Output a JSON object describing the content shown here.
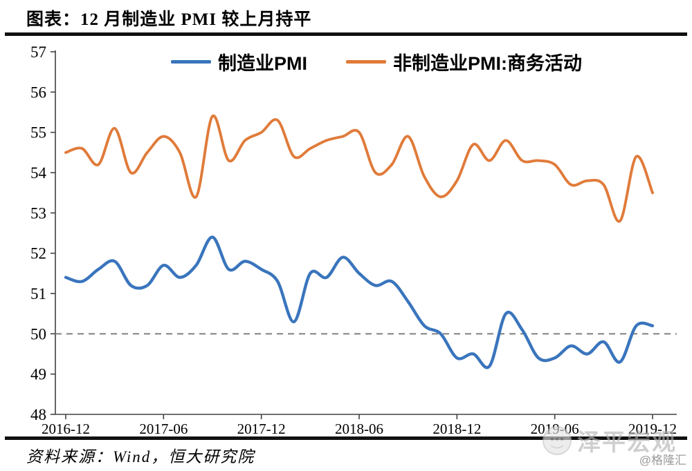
{
  "header": {
    "title": "图表：12 月制造业 PMI 较上月持平"
  },
  "source": {
    "label": "资料来源：Wind，恒大研究院"
  },
  "watermark": {
    "brand": "泽平宏观",
    "handle": "@格隆汇",
    "logo": "smiley-face-logo"
  },
  "chart_data": {
    "type": "line",
    "title": "12月制造业PMI较上月持平",
    "x": [
      "2016-12",
      "2017-01",
      "2017-02",
      "2017-03",
      "2017-04",
      "2017-05",
      "2017-06",
      "2017-07",
      "2017-08",
      "2017-09",
      "2017-10",
      "2017-11",
      "2017-12",
      "2018-01",
      "2018-02",
      "2018-03",
      "2018-04",
      "2018-05",
      "2018-06",
      "2018-07",
      "2018-08",
      "2018-09",
      "2018-10",
      "2018-11",
      "2018-12",
      "2019-01",
      "2019-02",
      "2019-03",
      "2019-04",
      "2019-05",
      "2019-06",
      "2019-07",
      "2019-08",
      "2019-09",
      "2019-10",
      "2019-11",
      "2019-12"
    ],
    "x_tick_labels": [
      "2016-12",
      "2017-06",
      "2017-12",
      "2018-06",
      "2018-12",
      "2019-06",
      "2019-12"
    ],
    "series": [
      {
        "name": "制造业PMI",
        "color": "#3A75BD",
        "values": [
          51.4,
          51.3,
          51.6,
          51.8,
          51.2,
          51.2,
          51.7,
          51.4,
          51.7,
          52.4,
          51.6,
          51.8,
          51.6,
          51.3,
          50.3,
          51.5,
          51.4,
          51.9,
          51.5,
          51.2,
          51.3,
          50.8,
          50.2,
          50.0,
          49.4,
          49.5,
          49.2,
          50.5,
          50.1,
          49.4,
          49.4,
          49.7,
          49.5,
          49.8,
          49.3,
          50.2,
          50.2
        ]
      },
      {
        "name": "非制造业PMI:商务活动",
        "color": "#E07B3A",
        "values": [
          54.5,
          54.6,
          54.2,
          55.1,
          54.0,
          54.5,
          54.9,
          54.5,
          53.4,
          55.4,
          54.3,
          54.8,
          55.0,
          55.3,
          54.4,
          54.6,
          54.8,
          54.9,
          55.0,
          54.0,
          54.2,
          54.9,
          53.9,
          53.4,
          53.8,
          54.7,
          54.3,
          54.8,
          54.3,
          54.3,
          54.2,
          53.7,
          53.8,
          53.7,
          52.8,
          54.4,
          53.5
        ]
      }
    ],
    "ylim": [
      48,
      57
    ],
    "y_ticks": [
      48,
      49,
      50,
      51,
      52,
      53,
      54,
      55,
      56,
      57
    ],
    "reference_line": {
      "value": 50,
      "style": "dashed",
      "color": "#7F7F7F"
    },
    "grid": false,
    "legend_position": "top",
    "axis_color": "#404040"
  }
}
